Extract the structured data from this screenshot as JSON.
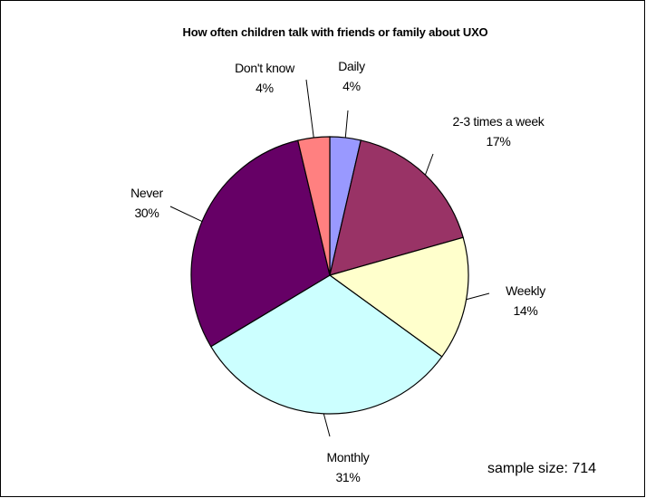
{
  "chart_data": {
    "type": "pie",
    "title": "How often children talk with friends or family about UXO",
    "slices": [
      {
        "label": "Daily",
        "percent_label": "4%",
        "value": 3.6,
        "color": "#9999ff"
      },
      {
        "label": "2-3 times a week",
        "percent_label": "17%",
        "value": 17.0,
        "color": "#993366"
      },
      {
        "label": "Weekly",
        "percent_label": "14%",
        "value": 14.4,
        "color": "#ffffcc"
      },
      {
        "label": "Monthly",
        "percent_label": "31%",
        "value": 31.4,
        "color": "#ccffff"
      },
      {
        "label": "Never",
        "percent_label": "30%",
        "value": 29.9,
        "color": "#660066"
      },
      {
        "label": "Don't know",
        "percent_label": "4%",
        "value": 3.7,
        "color": "#ff8080"
      }
    ],
    "start_angle_deg": 0,
    "direction": "clockwise",
    "legend": "none",
    "annotation": "sample size: 714"
  }
}
